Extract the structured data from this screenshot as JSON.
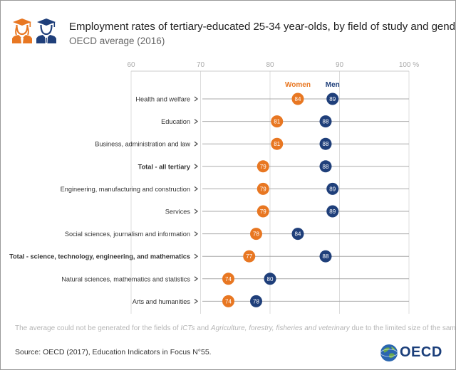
{
  "header": {
    "title": "Employment rates of tertiary-educated 25-34 year-olds, by field of study and gender",
    "subtitle": "OECD average (2016)",
    "icons": [
      "female-graduate-icon",
      "male-graduate-icon"
    ]
  },
  "footer": {
    "note_part1": "The average could not be generated for the fields of ",
    "note_em1": "ICTs",
    "note_part2": " and ",
    "note_em2": "Agriculture, forestry, fisheries and veterinary",
    "note_part3": " due to the limited size of the sample.",
    "source": "Source: OECD (2017), Education Indicators in Focus N°55.",
    "logo_text": "OECD"
  },
  "colors": {
    "women": "#e87722",
    "men": "#1f3f7a",
    "grid": "#dddddd",
    "line": "#aaaaaa"
  },
  "chart_data": {
    "type": "scatter",
    "title": "Employment rates of tertiary-educated 25-34 year-olds, by field of study and gender",
    "subtitle": "OECD average (2016)",
    "x_ticks": [
      "60",
      "70",
      "80",
      "90",
      "100 %"
    ],
    "xlim": [
      60,
      100
    ],
    "categories": [
      "Health and welfare",
      "Education",
      "Business, administration and law",
      "Total - all tertiary",
      "Engineering, manufacturing and construction",
      "Services",
      "Social sciences, journalism and information",
      "Total - science, technology, engineering, and mathematics",
      "Natural sciences, mathematics and statistics",
      "Arts and humanities"
    ],
    "bold_categories": [
      "Total - all tertiary",
      "Total - science, technology, engineering, and mathematics"
    ],
    "series": [
      {
        "name": "Women",
        "values": [
          84,
          81,
          81,
          79,
          79,
          79,
          78,
          77,
          74,
          74
        ]
      },
      {
        "name": "Men",
        "values": [
          89,
          88,
          88,
          88,
          89,
          89,
          84,
          88,
          80,
          78
        ]
      }
    ],
    "legend": "top, above markers"
  }
}
